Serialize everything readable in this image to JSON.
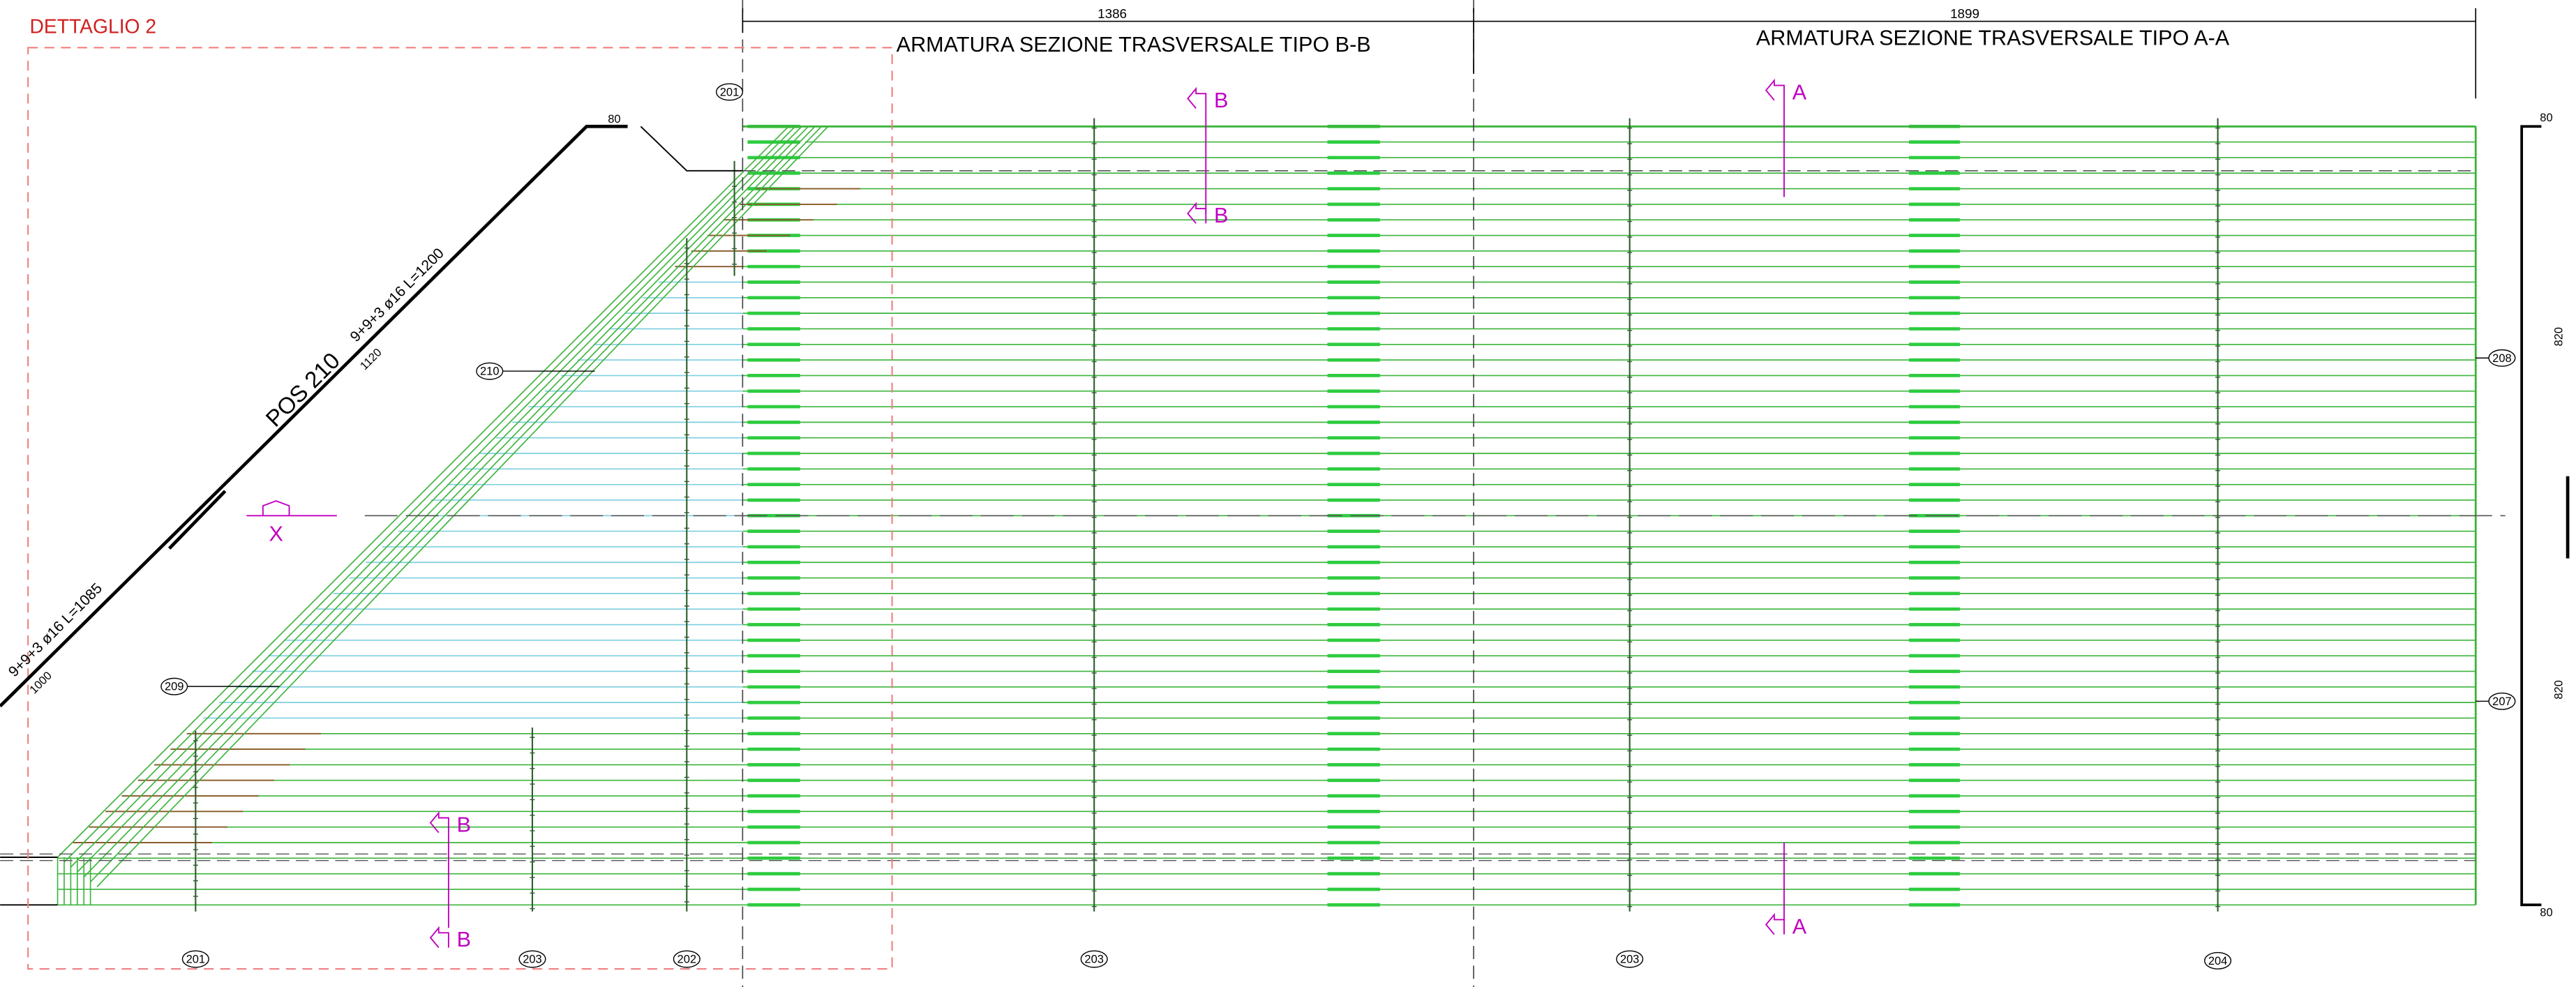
{
  "header": {
    "title": "DETTAGLIO 2"
  },
  "dimensions": {
    "top_left": "1386",
    "top_right": "1899",
    "top_corner": "80",
    "right": [
      "80",
      "820",
      "820",
      "80"
    ]
  },
  "sections": {
    "left_title": "ARMATURA SEZIONE TRASVERSALE TIPO  B-B",
    "right_title": "ARMATURA SEZIONE TRASVERSALE TIPO  A-A"
  },
  "section_marks": [
    "B",
    "B",
    "A",
    "A",
    "B",
    "B",
    "X"
  ],
  "bars": {
    "upper": {
      "label": "POS 210",
      "spec": "9+9+3 ø16 L=1200",
      "length": "1120"
    },
    "lower": {
      "spec": "9+9+3 ø16 L=1085",
      "length": "1000"
    }
  },
  "callouts": [
    "201",
    "210",
    "209",
    "201",
    "203",
    "202",
    "203",
    "203",
    "204",
    "208",
    "207"
  ]
}
